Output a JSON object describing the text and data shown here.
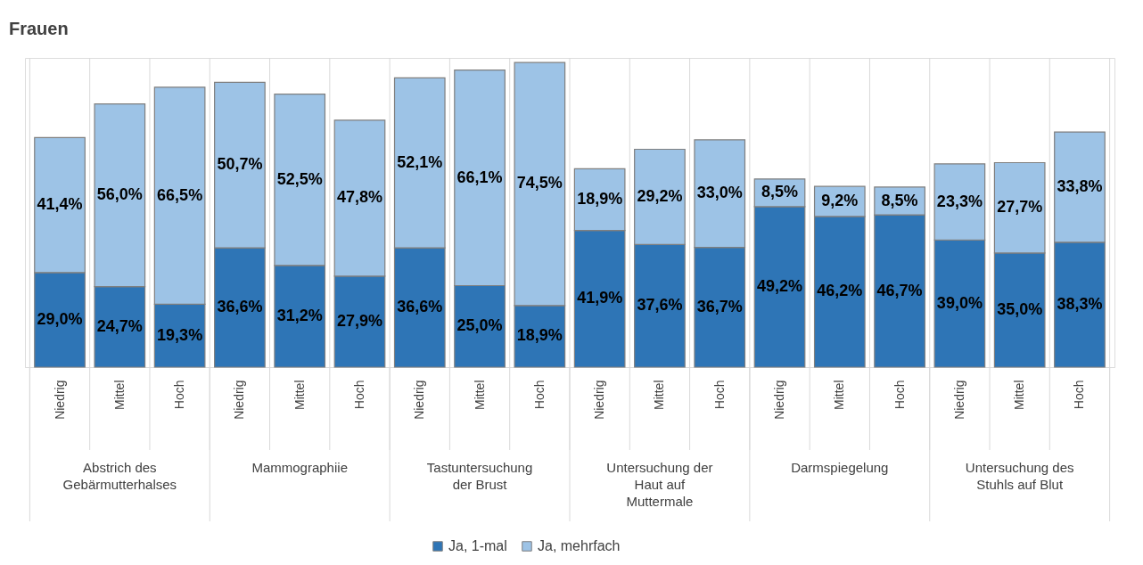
{
  "chart_data": {
    "type": "bar",
    "title": "Frauen",
    "stacked": true,
    "grid": "x",
    "legend": "bottom",
    "categories": [
      "Niedrig",
      "Mittel",
      "Hoch",
      "Niedrig",
      "Mittel",
      "Hoch",
      "Niedrig",
      "Mittel",
      "Hoch",
      "Niedrig",
      "Mittel",
      "Hoch",
      "Niedrig",
      "Mittel",
      "Hoch",
      "Niedrig",
      "Mittel",
      "Hoch"
    ],
    "annotations": [
      "Abstrich des\nGebärmutterhalses",
      "Mammographiie",
      "Tastuntersuchung\nder Brust",
      "Untersuchung der\nHaut auf\nMuttermale",
      "Darmspiegelung",
      "Untersuchung des\nStuhls auf Blut"
    ],
    "series": [
      {
        "name": "Ja, 1-mal",
        "color": "#2e75b6",
        "values": [
          29.0,
          24.7,
          19.3,
          36.6,
          31.2,
          27.9,
          36.6,
          25.0,
          18.9,
          41.9,
          37.6,
          36.7,
          49.2,
          46.2,
          46.7,
          39.0,
          35.0,
          38.3
        ],
        "value_labels": [
          "29,0%",
          "24,7%",
          "19,3%",
          "36,6%",
          "31,2%",
          "27,9%",
          "36,6%",
          "25,0%",
          "18,9%",
          "41,9%",
          "37,6%",
          "36,7%",
          "49,2%",
          "46,2%",
          "46,7%",
          "39,0%",
          "35,0%",
          "38,3%"
        ]
      },
      {
        "name": "Ja, mehrfach",
        "color": "#9dc3e6",
        "values": [
          41.4,
          56.0,
          66.5,
          50.7,
          52.5,
          47.8,
          52.1,
          66.1,
          74.5,
          18.9,
          29.2,
          33.0,
          8.5,
          9.2,
          8.5,
          23.3,
          27.7,
          33.8
        ],
        "value_labels": [
          "41,4%",
          "56,0%",
          "66,5%",
          "50,7%",
          "52,5%",
          "47,8%",
          "52,1%",
          "66,1%",
          "74,5%",
          "18,9%",
          "29,2%",
          "33,0%",
          "8,5%",
          "9,2%",
          "8,5%",
          "23,3%",
          "27,7%",
          "33,8%"
        ]
      }
    ]
  }
}
